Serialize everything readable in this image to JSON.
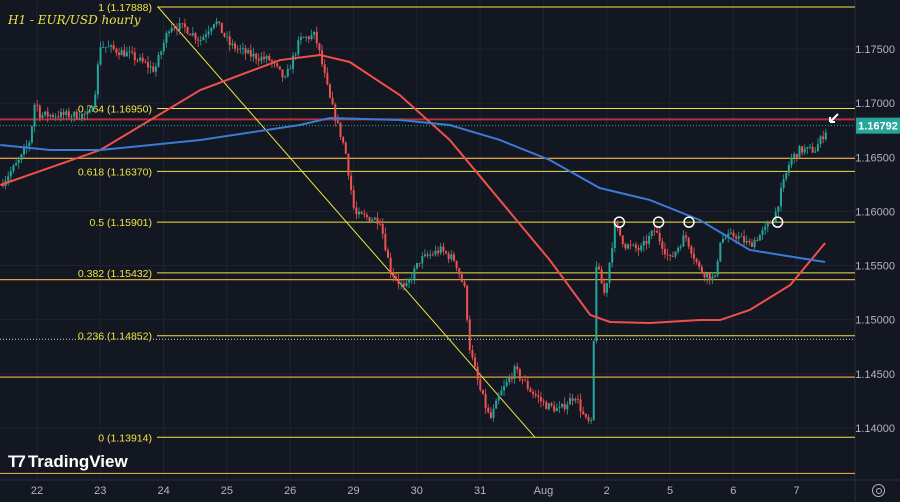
{
  "chart_data": {
    "type": "candlestick",
    "title": "H1 - EUR/USD hourly",
    "symbol": "EUR/USD",
    "timeframe": "H1",
    "current_price": "1.16792",
    "x_tick_labels": [
      "22",
      "23",
      "24",
      "25",
      "26",
      "29",
      "30",
      "31",
      "Aug",
      "2",
      "5",
      "6",
      "7"
    ],
    "y_tick_labels": [
      "1.17500",
      "1.17000",
      "1.16500",
      "1.16000",
      "1.15500",
      "1.15000",
      "1.14500",
      "1.14000"
    ],
    "y_ticks": [
      1.175,
      1.17,
      1.165,
      1.16,
      1.155,
      1.15,
      1.145,
      1.14
    ],
    "ylim": [
      1.1345,
      1.1806
    ],
    "x_unit": "trading days from Jul 22",
    "fib_levels": [
      {
        "ratio": "1",
        "price": 1.17888,
        "label": "1 (1.17888)"
      },
      {
        "ratio": "0.764",
        "price": 1.1695,
        "label": "0.764 (1.16950)"
      },
      {
        "ratio": "0.618",
        "price": 1.1637,
        "label": "0.618 (1.16370)"
      },
      {
        "ratio": "0.5",
        "price": 1.15901,
        "label": "0.5 (1.15901)"
      },
      {
        "ratio": "0.382",
        "price": 1.15432,
        "label": "0.382 (1.15432)"
      },
      {
        "ratio": "0.236",
        "price": 1.14852,
        "label": "0.236 (1.14852)"
      },
      {
        "ratio": "0",
        "price": 1.13914,
        "label": "0 (1.13914)"
      }
    ],
    "horizontal_levels": [
      1.1649,
      1.1537,
      1.1447,
      1.1358
    ],
    "resistance_level": 1.1685,
    "dotted_level": 1.1482,
    "touch_points": [
      9.2,
      9.82,
      10.3,
      11.7
    ],
    "price_path": [
      [
        -0.58,
        1.16244
      ],
      [
        -0.27,
        1.16475
      ],
      [
        -0.11,
        1.1666
      ],
      [
        -0.03,
        1.17029
      ],
      [
        0.05,
        1.1689
      ],
      [
        0.84,
        1.1689
      ],
      [
        0.92,
        1.17121
      ],
      [
        1.0,
        1.17537
      ],
      [
        1.47,
        1.17445
      ],
      [
        1.86,
        1.17306
      ],
      [
        2.1,
        1.17722
      ],
      [
        2.34,
        1.17694
      ],
      [
        2.58,
        1.17583
      ],
      [
        2.81,
        1.17768
      ],
      [
        3.05,
        1.17537
      ],
      [
        3.36,
        1.17445
      ],
      [
        3.68,
        1.17398
      ],
      [
        3.92,
        1.17214
      ],
      [
        4.15,
        1.17583
      ],
      [
        4.39,
        1.17629
      ],
      [
        4.47,
        1.17445
      ],
      [
        4.63,
        1.17029
      ],
      [
        4.87,
        1.16567
      ],
      [
        5.02,
        1.15967
      ],
      [
        5.42,
        1.15921
      ],
      [
        5.58,
        1.15459
      ],
      [
        5.81,
        1.15274
      ],
      [
        6.05,
        1.15551
      ],
      [
        6.37,
        1.15644
      ],
      [
        6.6,
        1.15551
      ],
      [
        6.76,
        1.15274
      ],
      [
        6.84,
        1.1472
      ],
      [
        7.0,
        1.14351
      ],
      [
        7.16,
        1.14074
      ],
      [
        7.31,
        1.14305
      ],
      [
        7.55,
        1.14536
      ],
      [
        7.79,
        1.14351
      ],
      [
        8.03,
        1.14212
      ],
      [
        8.26,
        1.14166
      ],
      [
        8.5,
        1.14305
      ],
      [
        8.66,
        1.14074
      ],
      [
        8.77,
        1.14028
      ],
      [
        8.82,
        1.15551
      ],
      [
        8.97,
        1.15228
      ],
      [
        9.13,
        1.15875
      ],
      [
        9.29,
        1.1569
      ],
      [
        9.53,
        1.15644
      ],
      [
        9.76,
        1.15828
      ],
      [
        10.0,
        1.15551
      ],
      [
        10.24,
        1.15782
      ],
      [
        10.47,
        1.15459
      ],
      [
        10.71,
        1.15367
      ],
      [
        10.79,
        1.15736
      ],
      [
        11.03,
        1.15782
      ],
      [
        11.26,
        1.1569
      ],
      [
        11.5,
        1.15828
      ],
      [
        11.66,
        1.15967
      ],
      [
        11.74,
        1.16152
      ],
      [
        11.9,
        1.16475
      ],
      [
        12.05,
        1.16567
      ],
      [
        12.29,
        1.16567
      ],
      [
        12.5,
        1.16789
      ]
    ],
    "series": [
      {
        "name": "MA (red)",
        "color": "#f23645",
        "points": [
          [
            -0.58,
            1.16244
          ],
          [
            1.0,
            1.16567
          ],
          [
            2.58,
            1.17121
          ],
          [
            3.84,
            1.17398
          ],
          [
            4.47,
            1.17445
          ],
          [
            4.94,
            1.1738
          ],
          [
            5.73,
            1.17075
          ],
          [
            6.52,
            1.1666
          ],
          [
            7.31,
            1.16106
          ],
          [
            8.1,
            1.15551
          ],
          [
            8.74,
            1.15044
          ],
          [
            9.05,
            1.14979
          ],
          [
            9.68,
            1.1497
          ],
          [
            10.47,
            1.14997
          ],
          [
            10.79,
            1.14997
          ],
          [
            11.26,
            1.1509
          ],
          [
            11.9,
            1.15321
          ],
          [
            12.45,
            1.15708
          ]
        ]
      },
      {
        "name": "MA (blue)",
        "color": "#2962ff",
        "points": [
          [
            -0.58,
            1.16613
          ],
          [
            0.21,
            1.16567
          ],
          [
            1.0,
            1.16567
          ],
          [
            2.58,
            1.1666
          ],
          [
            4.15,
            1.16798
          ],
          [
            4.63,
            1.16863
          ],
          [
            5.73,
            1.16844
          ],
          [
            6.52,
            1.16798
          ],
          [
            7.31,
            1.1666
          ],
          [
            8.1,
            1.16475
          ],
          [
            8.89,
            1.16216
          ],
          [
            9.68,
            1.16106
          ],
          [
            10.47,
            1.15921
          ],
          [
            11.26,
            1.15644
          ],
          [
            12.05,
            1.1557
          ],
          [
            12.45,
            1.15533
          ]
        ]
      }
    ],
    "grid": true
  },
  "branding": {
    "logo_text": "TradingView"
  },
  "colors": {
    "bg": "#131722",
    "up": "#26a69a",
    "down": "#ef5350",
    "fib": "#f0e442",
    "level": "#e0a040",
    "price_tag": "#26a69a"
  }
}
